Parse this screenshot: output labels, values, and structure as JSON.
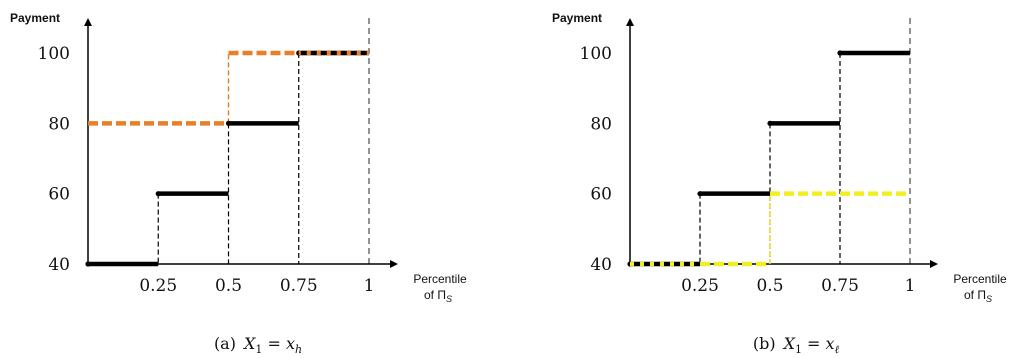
{
  "colors": {
    "axis": "#000000",
    "step": "#000000",
    "guide": "#000000",
    "boundary": "#777777",
    "orange": "#e8802a",
    "yellow": "#f2ee24"
  },
  "chart_data": [
    {
      "type": "line",
      "ylabel": "Payment",
      "xlabel_line1": "Percentile",
      "xlabel_line2": "of Π",
      "xlabel_sub": "S",
      "caption_tag": "(a)",
      "caption_var": "X",
      "caption_var_sub": "1",
      "caption_eq": " = ",
      "caption_val": "x",
      "caption_val_sub": "h",
      "xlim": [
        0,
        1
      ],
      "ylim": [
        40,
        100
      ],
      "x_ticks": [
        0.25,
        0.5,
        0.75,
        1
      ],
      "x_tick_labels": [
        "0.25",
        "0.5",
        "0.75",
        "1"
      ],
      "y_ticks": [
        40,
        60,
        80,
        100
      ],
      "y_tick_labels": [
        "40",
        "60",
        "80",
        "100"
      ],
      "series": [
        {
          "style": "solid-black",
          "segments": [
            {
              "x": [
                0,
                0.25
              ],
              "y": 40
            },
            {
              "x": [
                0.25,
                0.5
              ],
              "y": 60
            },
            {
              "x": [
                0.5,
                0.75
              ],
              "y": 80
            },
            {
              "x": [
                0.75,
                1
              ],
              "y": 100
            }
          ]
        },
        {
          "style": "dashed-orange",
          "segments": [
            {
              "x": [
                0,
                0.5
              ],
              "y": 80
            },
            {
              "x": [
                0.5,
                1
              ],
              "y": 100
            }
          ]
        }
      ]
    },
    {
      "type": "line",
      "ylabel": "Payment",
      "xlabel_line1": "Percentile",
      "xlabel_line2": "of Π",
      "xlabel_sub": "S",
      "caption_tag": "(b)",
      "caption_var": "X",
      "caption_var_sub": "1",
      "caption_eq": " = ",
      "caption_val": "x",
      "caption_val_sub": "ℓ",
      "xlim": [
        0,
        1
      ],
      "ylim": [
        40,
        100
      ],
      "x_ticks": [
        0.25,
        0.5,
        0.75,
        1
      ],
      "x_tick_labels": [
        "0.25",
        "0.5",
        "0.75",
        "1"
      ],
      "y_ticks": [
        40,
        60,
        80,
        100
      ],
      "y_tick_labels": [
        "40",
        "60",
        "80",
        "100"
      ],
      "series": [
        {
          "style": "solid-black",
          "segments": [
            {
              "x": [
                0,
                0.25
              ],
              "y": 40
            },
            {
              "x": [
                0.25,
                0.5
              ],
              "y": 60
            },
            {
              "x": [
                0.5,
                0.75
              ],
              "y": 80
            },
            {
              "x": [
                0.75,
                1
              ],
              "y": 100
            }
          ]
        },
        {
          "style": "dashed-yellow",
          "segments": [
            {
              "x": [
                0,
                0.5
              ],
              "y": 40
            },
            {
              "x": [
                0.5,
                1
              ],
              "y": 60
            }
          ]
        }
      ]
    }
  ]
}
